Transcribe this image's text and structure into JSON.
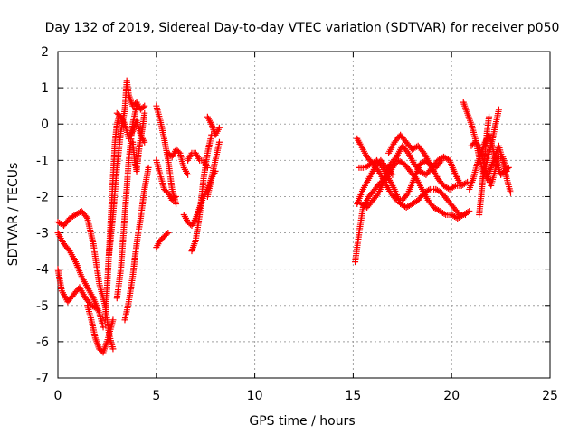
{
  "chart_data": {
    "type": "scatter",
    "title": "Day 132 of 2019, Sidereal Day-to-day VTEC variation (SDTVAR) for receiver p050",
    "xlabel": "GPS time / hours",
    "ylabel": "SDTVAR / TECUs",
    "xlim": [
      0,
      25
    ],
    "ylim": [
      -7,
      2
    ],
    "xticks": [
      "0",
      "5",
      "10",
      "15",
      "20",
      "25"
    ],
    "yticks": [
      "2",
      "1",
      "0",
      "-1",
      "-2",
      "-3",
      "-4",
      "-5",
      "-6",
      "-7"
    ],
    "grid": true,
    "marker": "+",
    "color": "#ff0000",
    "series": [
      {
        "name": "p050",
        "segments": [
          {
            "x": [
              0.0,
              0.3,
              0.6,
              0.9,
              1.2,
              1.5,
              1.8,
              2.1,
              2.4,
              2.6,
              2.8
            ],
            "y": [
              -2.7,
              -2.8,
              -2.6,
              -2.5,
              -2.4,
              -2.6,
              -3.3,
              -4.4,
              -5.0,
              -5.8,
              -6.2
            ]
          },
          {
            "x": [
              0.0,
              0.2,
              0.5,
              0.8,
              1.1,
              1.4,
              1.7,
              2.0
            ],
            "y": [
              -4.0,
              -4.6,
              -4.9,
              -4.7,
              -4.5,
              -4.8,
              -5.0,
              -5.1
            ]
          },
          {
            "x": [
              0.0,
              0.3,
              0.6,
              0.9,
              1.2,
              1.5,
              1.8,
              2.1,
              2.3
            ],
            "y": [
              -3.0,
              -3.3,
              -3.5,
              -3.8,
              -4.2,
              -4.5,
              -4.8,
              -5.2,
              -5.6
            ]
          },
          {
            "x": [
              1.5,
              1.7,
              1.9,
              2.1,
              2.3,
              2.5,
              2.7,
              2.8
            ],
            "y": [
              -5.0,
              -5.4,
              -5.9,
              -6.2,
              -6.3,
              -6.0,
              -5.6,
              -5.4
            ]
          },
          {
            "x": [
              2.4,
              2.5,
              2.6,
              2.7,
              2.8,
              2.9,
              3.0,
              3.1
            ],
            "y": [
              -5.4,
              -4.5,
              -3.5,
              -2.5,
              -1.5,
              -0.5,
              0.0,
              0.2
            ]
          },
          {
            "x": [
              2.6,
              2.8,
              3.0,
              3.2,
              3.4,
              3.5,
              3.6,
              3.8,
              4.0,
              4.2,
              4.4
            ],
            "y": [
              -3.6,
              -2.5,
              -1.2,
              -0.2,
              0.4,
              1.2,
              0.8,
              0.5,
              0.6,
              0.4,
              0.5
            ]
          },
          {
            "x": [
              3.0,
              3.2,
              3.4,
              3.6,
              3.8,
              4.0,
              4.2,
              4.4
            ],
            "y": [
              0.3,
              0.2,
              0.0,
              -0.4,
              -0.2,
              0.1,
              -0.3,
              -0.5
            ]
          },
          {
            "x": [
              3.0,
              3.2,
              3.4,
              3.6,
              3.8,
              4.0
            ],
            "y": [
              -4.8,
              -4.0,
              -2.5,
              -1.0,
              0.0,
              0.5
            ]
          },
          {
            "x": [
              3.4,
              3.6,
              3.8,
              4.0,
              4.2,
              4.4,
              4.6
            ],
            "y": [
              -5.4,
              -4.9,
              -4.2,
              -3.3,
              -2.6,
              -1.8,
              -1.2
            ]
          },
          {
            "x": [
              3.8,
              3.9,
              4.0,
              4.1,
              4.2,
              4.3,
              4.4
            ],
            "y": [
              -0.5,
              -1.0,
              -1.3,
              -0.8,
              -0.4,
              -0.1,
              0.3
            ]
          },
          {
            "x": [
              5.0,
              5.2,
              5.4,
              5.6,
              5.8,
              6.0
            ],
            "y": [
              0.5,
              0.1,
              -0.4,
              -1.0,
              -1.8,
              -2.2
            ]
          },
          {
            "x": [
              5.0,
              5.2,
              5.4,
              5.6
            ],
            "y": [
              -3.4,
              -3.2,
              -3.1,
              -3.0
            ]
          },
          {
            "x": [
              5.0,
              5.2,
              5.4,
              5.6,
              5.8,
              6.0
            ],
            "y": [
              -1.0,
              -1.4,
              -1.8,
              -1.9,
              -2.1,
              -2.0
            ]
          },
          {
            "x": [
              5.6,
              5.8,
              6.0,
              6.2,
              6.4,
              6.6
            ],
            "y": [
              -0.8,
              -0.9,
              -0.7,
              -0.8,
              -1.2,
              -1.4
            ]
          },
          {
            "x": [
              6.4,
              6.6,
              6.8,
              7.0,
              7.2,
              7.4,
              7.6,
              7.8,
              8.0
            ],
            "y": [
              -2.5,
              -2.7,
              -2.8,
              -2.6,
              -2.3,
              -2.0,
              -1.8,
              -1.5,
              -1.3
            ]
          },
          {
            "x": [
              6.6,
              6.8,
              7.0,
              7.2,
              7.4,
              7.6
            ],
            "y": [
              -1.0,
              -0.8,
              -0.8,
              -1.0,
              -1.0,
              -1.2
            ]
          },
          {
            "x": [
              6.8,
              7.0,
              7.2,
              7.4,
              7.6,
              7.8
            ],
            "y": [
              -3.5,
              -3.2,
              -2.5,
              -1.5,
              -0.8,
              -0.3
            ]
          },
          {
            "x": [
              7.6,
              7.8,
              8.0,
              8.2
            ],
            "y": [
              0.2,
              0.0,
              -0.3,
              -0.1
            ]
          },
          {
            "x": [
              7.6,
              7.8,
              8.0,
              8.2
            ],
            "y": [
              -2.0,
              -1.5,
              -1.0,
              -0.5
            ]
          },
          {
            "x": [
              15.1,
              15.3,
              15.5,
              15.8,
              16.1,
              16.4,
              16.7,
              17.0,
              17.3,
              17.6,
              17.9,
              18.2,
              18.5,
              18.8,
              19.1,
              19.4,
              19.7,
              20.0,
              20.3,
              20.6,
              20.9
            ],
            "y": [
              -3.8,
              -3.0,
              -2.3,
              -2.0,
              -1.8,
              -1.6,
              -1.5,
              -1.2,
              -1.0,
              -1.1,
              -1.3,
              -1.5,
              -1.8,
              -2.1,
              -2.3,
              -2.4,
              -2.5,
              -2.5,
              -2.6,
              -2.5,
              -2.4
            ]
          },
          {
            "x": [
              15.2,
              15.4,
              15.7,
              16.0,
              16.3,
              16.6,
              16.9,
              17.2,
              17.5,
              17.8,
              18.1,
              18.4,
              18.7,
              19.0,
              19.3,
              19.6,
              19.9,
              20.2,
              20.5,
              20.8
            ],
            "y": [
              -0.4,
              -0.6,
              -0.9,
              -1.1,
              -1.3,
              -1.6,
              -1.9,
              -2.1,
              -2.1,
              -1.9,
              -1.5,
              -1.1,
              -1.0,
              -1.2,
              -1.5,
              -1.7,
              -1.8,
              -1.7,
              -1.7,
              -1.6
            ]
          },
          {
            "x": [
              15.3,
              15.6,
              15.9,
              16.2,
              16.5,
              16.8,
              17.1,
              17.4,
              17.7,
              18.0,
              18.3,
              18.6,
              18.9,
              19.2,
              19.5,
              19.8,
              20.1,
              20.4,
              20.7
            ],
            "y": [
              -1.2,
              -1.2,
              -1.1,
              -1.0,
              -1.2,
              -1.5,
              -1.8,
              -2.2,
              -2.3,
              -2.2,
              -2.1,
              -1.9,
              -1.8,
              -1.8,
              -1.9,
              -2.1,
              -2.3,
              -2.5,
              -2.5
            ]
          },
          {
            "x": [
              15.4,
              15.7,
              16.0,
              16.3,
              16.6,
              16.9,
              17.2,
              17.5,
              17.8,
              18.1,
              18.4,
              18.7,
              19.0,
              19.3,
              19.6,
              19.9,
              20.2,
              20.5
            ],
            "y": [
              -2.2,
              -2.3,
              -2.1,
              -1.9,
              -1.5,
              -1.1,
              -0.9,
              -0.6,
              -0.8,
              -1.1,
              -1.3,
              -1.4,
              -1.2,
              -1.0,
              -0.9,
              -1.0,
              -1.4,
              -1.7
            ]
          },
          {
            "x": [
              15.2,
              15.5,
              15.8,
              16.1,
              16.4,
              16.7,
              17.0
            ],
            "y": [
              -2.2,
              -1.8,
              -1.5,
              -1.2,
              -1.0,
              -1.2,
              -1.4
            ]
          },
          {
            "x": [
              16.8,
              17.1,
              17.4,
              17.7,
              18.0,
              18.3,
              18.6,
              18.9,
              19.2,
              19.5
            ],
            "y": [
              -0.8,
              -0.5,
              -0.3,
              -0.5,
              -0.7,
              -0.6,
              -0.8,
              -1.1,
              -1.2,
              -1.0
            ]
          },
          {
            "x": [
              20.6,
              20.8,
              21.0,
              21.2,
              21.4,
              21.6,
              21.8,
              22.0,
              22.2,
              22.4,
              22.6,
              22.8,
              23.0
            ],
            "y": [
              0.6,
              0.3,
              0.0,
              -0.4,
              -0.9,
              -1.3,
              -1.5,
              -1.2,
              -0.9,
              -0.6,
              -1.0,
              -1.5,
              -1.9
            ]
          },
          {
            "x": [
              20.9,
              21.1,
              21.3,
              21.5,
              21.7,
              21.9,
              22.1,
              22.3,
              22.5,
              22.7,
              22.9
            ],
            "y": [
              -1.8,
              -1.5,
              -1.1,
              -0.8,
              -0.5,
              -0.3,
              -0.7,
              -1.1,
              -1.4,
              -1.3,
              -1.2
            ]
          },
          {
            "x": [
              21.0,
              21.2,
              21.4,
              21.6,
              21.8,
              22.0,
              22.2,
              22.4,
              22.6,
              22.8
            ],
            "y": [
              -0.6,
              -0.5,
              -0.6,
              -1.0,
              -1.4,
              -1.7,
              -1.3,
              -0.9,
              -0.9,
              -1.3
            ]
          },
          {
            "x": [
              21.4,
              21.5,
              21.6,
              21.7,
              21.8,
              21.9
            ],
            "y": [
              -2.5,
              -2.0,
              -1.4,
              -0.8,
              -0.2,
              0.2
            ]
          },
          {
            "x": [
              21.6,
              21.8,
              22.0,
              22.2,
              22.4
            ],
            "y": [
              -1.5,
              -1.0,
              -0.6,
              -0.1,
              0.4
            ]
          }
        ]
      }
    ]
  }
}
